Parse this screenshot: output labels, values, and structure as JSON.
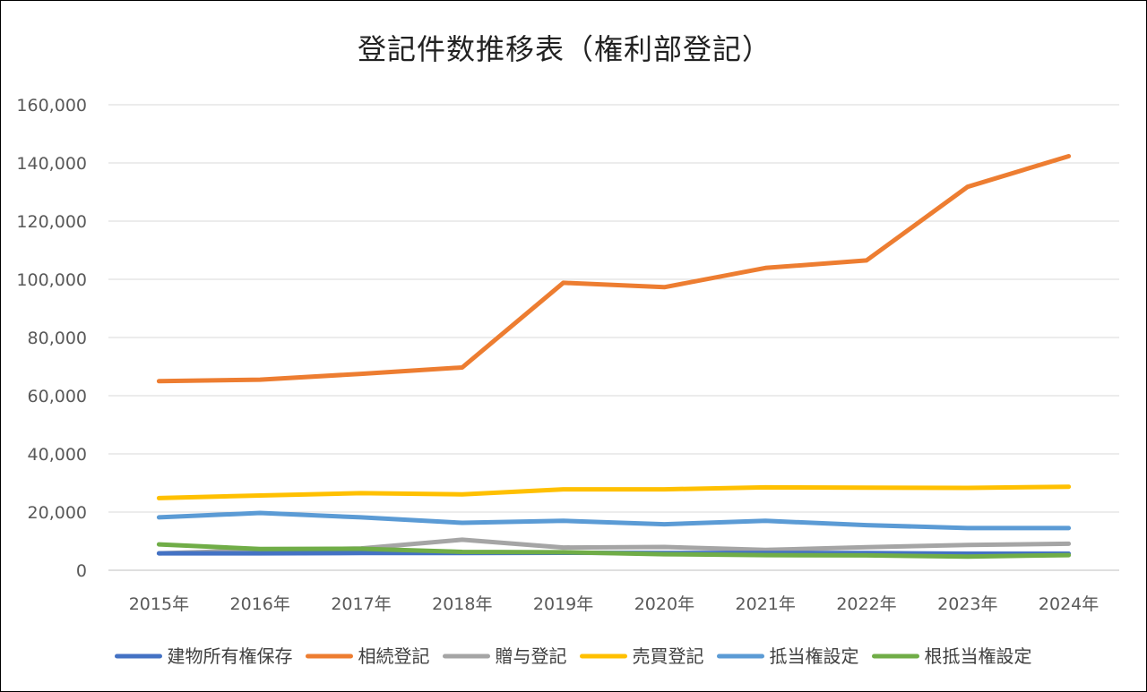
{
  "chart_data": {
    "type": "line",
    "title": "登記件数推移表（権利部登記）",
    "xlabel": "",
    "ylabel": "",
    "categories": [
      "2015年",
      "2016年",
      "2017年",
      "2018年",
      "2019年",
      "2020年",
      "2021年",
      "2022年",
      "2023年",
      "2024年"
    ],
    "ylim": [
      0,
      160000
    ],
    "yticks": [
      "0",
      "20,000",
      "40,000",
      "60,000",
      "80,000",
      "100,000",
      "120,000",
      "140,000",
      "160,000"
    ],
    "ytick_values": [
      0,
      20000,
      40000,
      60000,
      80000,
      100000,
      120000,
      140000,
      160000
    ],
    "grid": true,
    "legend_position": "bottom",
    "series": [
      {
        "name": "建物所有権保存",
        "color": "#4472C4",
        "values": [
          5800,
          5800,
          5900,
          5900,
          6000,
          5900,
          5900,
          5900,
          5700,
          5700
        ]
      },
      {
        "name": "相続登記",
        "color": "#ED7D31",
        "values": [
          65000,
          65500,
          67500,
          69700,
          98800,
          97300,
          103900,
          106500,
          131800,
          142300
        ]
      },
      {
        "name": "贈与登記",
        "color": "#A5A5A5",
        "values": [
          5800,
          6900,
          7500,
          10500,
          7800,
          8000,
          7000,
          7900,
          8700,
          9100
        ]
      },
      {
        "name": "売買登記",
        "color": "#FFC000",
        "values": [
          24800,
          25700,
          26500,
          26100,
          27800,
          27800,
          28500,
          28400,
          28300,
          28700
        ]
      },
      {
        "name": "抵当権設定",
        "color": "#5B9BD5",
        "values": [
          18200,
          19700,
          18200,
          16300,
          17000,
          15800,
          17000,
          15500,
          14500,
          14500
        ]
      },
      {
        "name": "根抵当権設定",
        "color": "#70AD47",
        "values": [
          8900,
          7300,
          7400,
          6300,
          6200,
          5500,
          5200,
          5100,
          4700,
          5200
        ]
      }
    ]
  }
}
